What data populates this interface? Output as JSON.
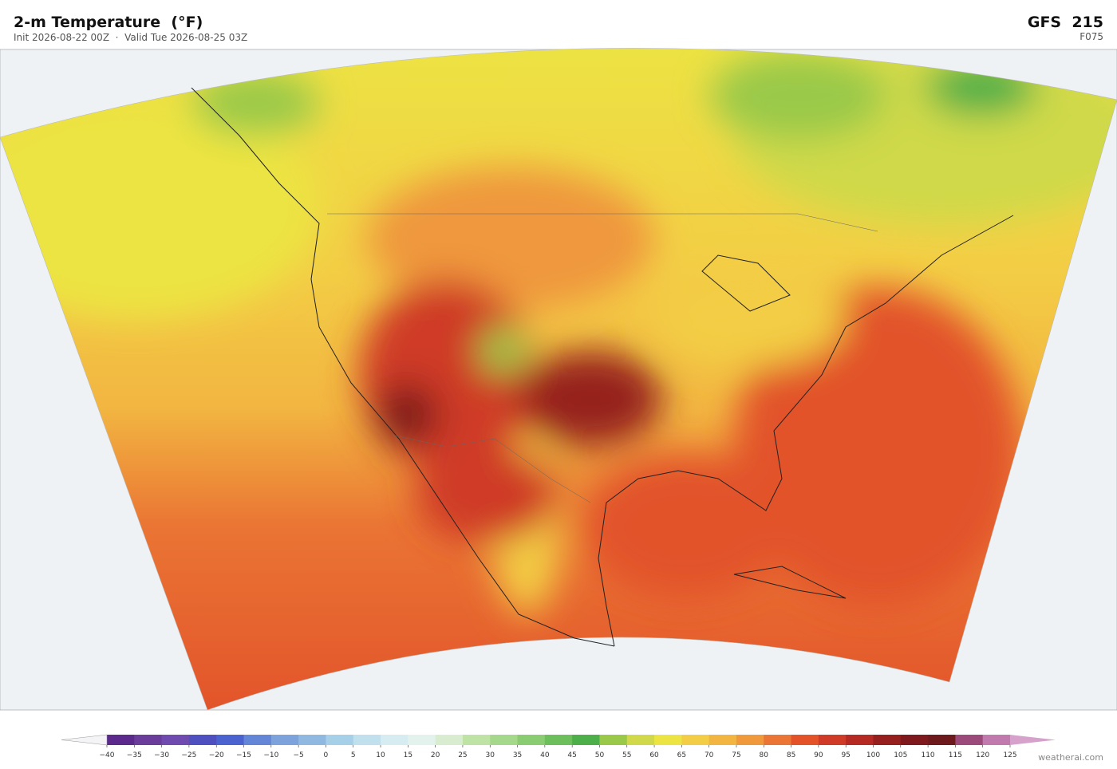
{
  "header": {
    "title": "2-m Temperature  (°F)",
    "subtitle": "Init 2026-08-22 00Z  ·  Valid Tue 2026-08-25 03Z",
    "model": "GFS  215",
    "forecast_hour": "F075"
  },
  "colorbar": {
    "ticks": [
      {
        "value": -40,
        "label": "−40"
      },
      {
        "value": -35,
        "label": "−35"
      },
      {
        "value": -30,
        "label": "−30"
      },
      {
        "value": -25,
        "label": "−25"
      },
      {
        "value": -20,
        "label": "−20"
      },
      {
        "value": -15,
        "label": "−15"
      },
      {
        "value": -10,
        "label": "−10"
      },
      {
        "value": -5,
        "label": "−5"
      },
      0,
      5,
      10,
      15,
      20,
      25,
      30,
      35,
      40,
      45,
      50,
      55,
      60,
      65,
      70,
      75,
      80,
      85,
      90,
      95,
      100,
      105,
      110,
      115,
      120,
      125
    ],
    "colors": [
      "#5b2a8c",
      "#6a3d9a",
      "#6f4bb0",
      "#4f4fbf",
      "#4a63cf",
      "#6386d6",
      "#7ea3dc",
      "#8fb9e0",
      "#a6cfe8",
      "#c0e0ee",
      "#d6ecf1",
      "#e4f2ee",
      "#d8edd0",
      "#bfe3a5",
      "#a5d88a",
      "#8acc72",
      "#6cbf5a",
      "#4caf4a",
      "#9ac94a",
      "#cfd94a",
      "#ece443",
      "#f3cd45",
      "#f2b541",
      "#ef983c",
      "#ea7534",
      "#e2532a",
      "#cf3b26",
      "#b52a22",
      "#96201d",
      "#7e1a1d",
      "#6e1a1c",
      "#9b4a7a",
      "#c07aad"
    ],
    "under_color": "#f4f4f6",
    "over_color": "#d6a2cc"
  },
  "watermark": "weatherai.com"
}
